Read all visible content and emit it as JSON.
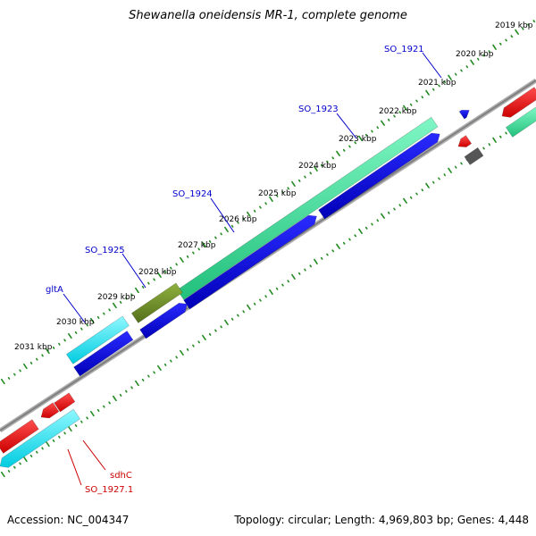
{
  "title": "Shewanella oneidensis MR-1, complete genome",
  "footer": {
    "accession": "Accession: NC_004347",
    "topology": "Topology: circular; Length: 4,969,803 bp; Genes: 4,448"
  },
  "kbp_labels": [
    "2019 kbp",
    "2020 kbp",
    "2021 kbp",
    "2022 kbp",
    "2023 kbp",
    "2024 kbp",
    "2025 kbp",
    "2026 kbp",
    "2027 kbp",
    "2028 kbp",
    "2029 kbp",
    "2030 kbp",
    "2031 kbp"
  ],
  "gene_labels": {
    "forward": [
      "SO_1921",
      "SO_1923",
      "SO_1924",
      "SO_1925",
      "gltA"
    ],
    "reverse": [
      "sdhC",
      "SO_1927.1"
    ]
  },
  "colors": {
    "forward_label": "#0000cc",
    "reverse_label": "#cc0000",
    "backbone": "#808080",
    "scale_ticks": "#228b22",
    "green_gene": "#33dd99",
    "olive_gene": "#6b8e23",
    "blue_gene": "#0000dd",
    "cyan_gene": "#00e5ee",
    "red_gene": "#ee0000",
    "grey_gene": "#555555"
  }
}
